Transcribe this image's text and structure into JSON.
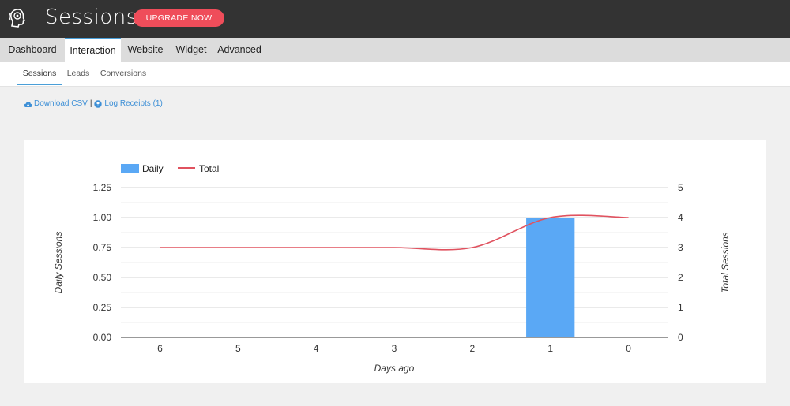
{
  "header": {
    "title": "Sessions",
    "upgrade_label": "UPGRADE NOW",
    "logo_icon": "brain-head-icon"
  },
  "main_tabs": [
    {
      "label": "Dashboard",
      "active": false
    },
    {
      "label": "Interaction",
      "active": true
    },
    {
      "label": "Website",
      "active": false
    },
    {
      "label": "Widget",
      "active": false
    },
    {
      "label": "Advanced",
      "active": false
    }
  ],
  "sub_tabs": [
    {
      "label": "Sessions",
      "active": true
    },
    {
      "label": "Leads",
      "active": false
    },
    {
      "label": "Conversions",
      "active": false
    }
  ],
  "actions": {
    "download_csv": "Download CSV",
    "separator": "|",
    "log_receipts": "Log Receipts (1)",
    "download_icon": "cloud-download-icon",
    "receipts_icon": "user-circle-icon"
  },
  "colors": {
    "bar": "#5aa8f5",
    "line": "#e0525f",
    "accent": "#4a9fd8",
    "upgrade": "#ef4d5a"
  },
  "chart_data": {
    "type": "bar",
    "categories": [
      "6",
      "5",
      "4",
      "3",
      "2",
      "1",
      "0"
    ],
    "series": [
      {
        "name": "Daily",
        "type": "bar",
        "axis": "left",
        "values": [
          0,
          0,
          0,
          0,
          0,
          1,
          0
        ]
      },
      {
        "name": "Total",
        "type": "line",
        "axis": "right",
        "values": [
          3,
          3,
          3,
          3,
          3,
          4,
          4
        ]
      }
    ],
    "xlabel": "Days ago",
    "ylabel": "Daily Sessions",
    "y2label": "Total Sessions",
    "ylim": [
      0,
      1.25
    ],
    "y2lim": [
      0,
      5
    ],
    "yticks": [
      "0.00",
      "0.25",
      "0.50",
      "0.75",
      "1.00",
      "1.25"
    ],
    "y2ticks": [
      "0",
      "1",
      "2",
      "3",
      "4",
      "5"
    ],
    "legend_position": "top-left",
    "grid": true
  }
}
